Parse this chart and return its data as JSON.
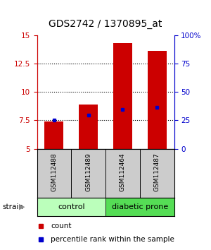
{
  "title": "GDS2742 / 1370895_at",
  "samples": [
    "GSM112488",
    "GSM112489",
    "GSM112464",
    "GSM112487"
  ],
  "bar_bottoms": [
    5.0,
    5.0,
    5.0,
    5.0
  ],
  "bar_tops": [
    7.42,
    8.9,
    14.3,
    13.6
  ],
  "percentile_values": [
    7.5,
    7.93,
    8.43,
    8.63
  ],
  "ylim": [
    5,
    15
  ],
  "yticks_left": [
    5,
    7.5,
    10,
    12.5,
    15
  ],
  "yticks_right_labels": [
    "0",
    "25",
    "50",
    "75",
    "100%"
  ],
  "bar_color": "#cc0000",
  "percentile_color": "#0000cc",
  "group_labels": [
    "control",
    "diabetic prone"
  ],
  "group_ranges": [
    [
      0,
      2
    ],
    [
      2,
      4
    ]
  ],
  "group_colors": [
    "#bbffbb",
    "#55dd55"
  ],
  "sample_box_color": "#cccccc",
  "legend_items": [
    "count",
    "percentile rank within the sample"
  ],
  "legend_colors": [
    "#cc0000",
    "#0000cc"
  ],
  "title_fontsize": 10,
  "tick_fontsize": 7.5,
  "left_axis_color": "#cc0000",
  "right_axis_color": "#0000cc"
}
